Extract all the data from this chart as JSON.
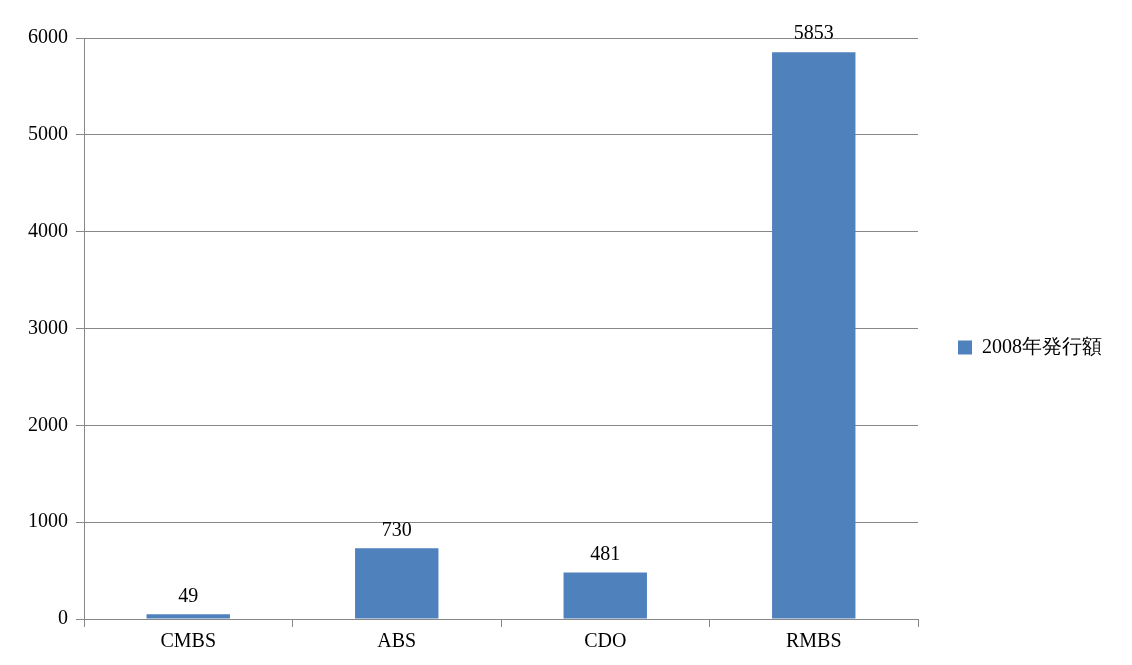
{
  "chart_data": {
    "type": "bar",
    "categories": [
      "CMBS",
      "ABS",
      "CDO",
      "RMBS"
    ],
    "series": [
      {
        "name": "2008年発行額",
        "color": "#4f81bd",
        "values": [
          49,
          730,
          481,
          5853
        ]
      }
    ],
    "ylim": [
      0,
      6000
    ],
    "yticks": [
      0,
      1000,
      2000,
      3000,
      4000,
      5000,
      6000
    ],
    "grid": "y",
    "legend": "right",
    "data_labels": true
  }
}
